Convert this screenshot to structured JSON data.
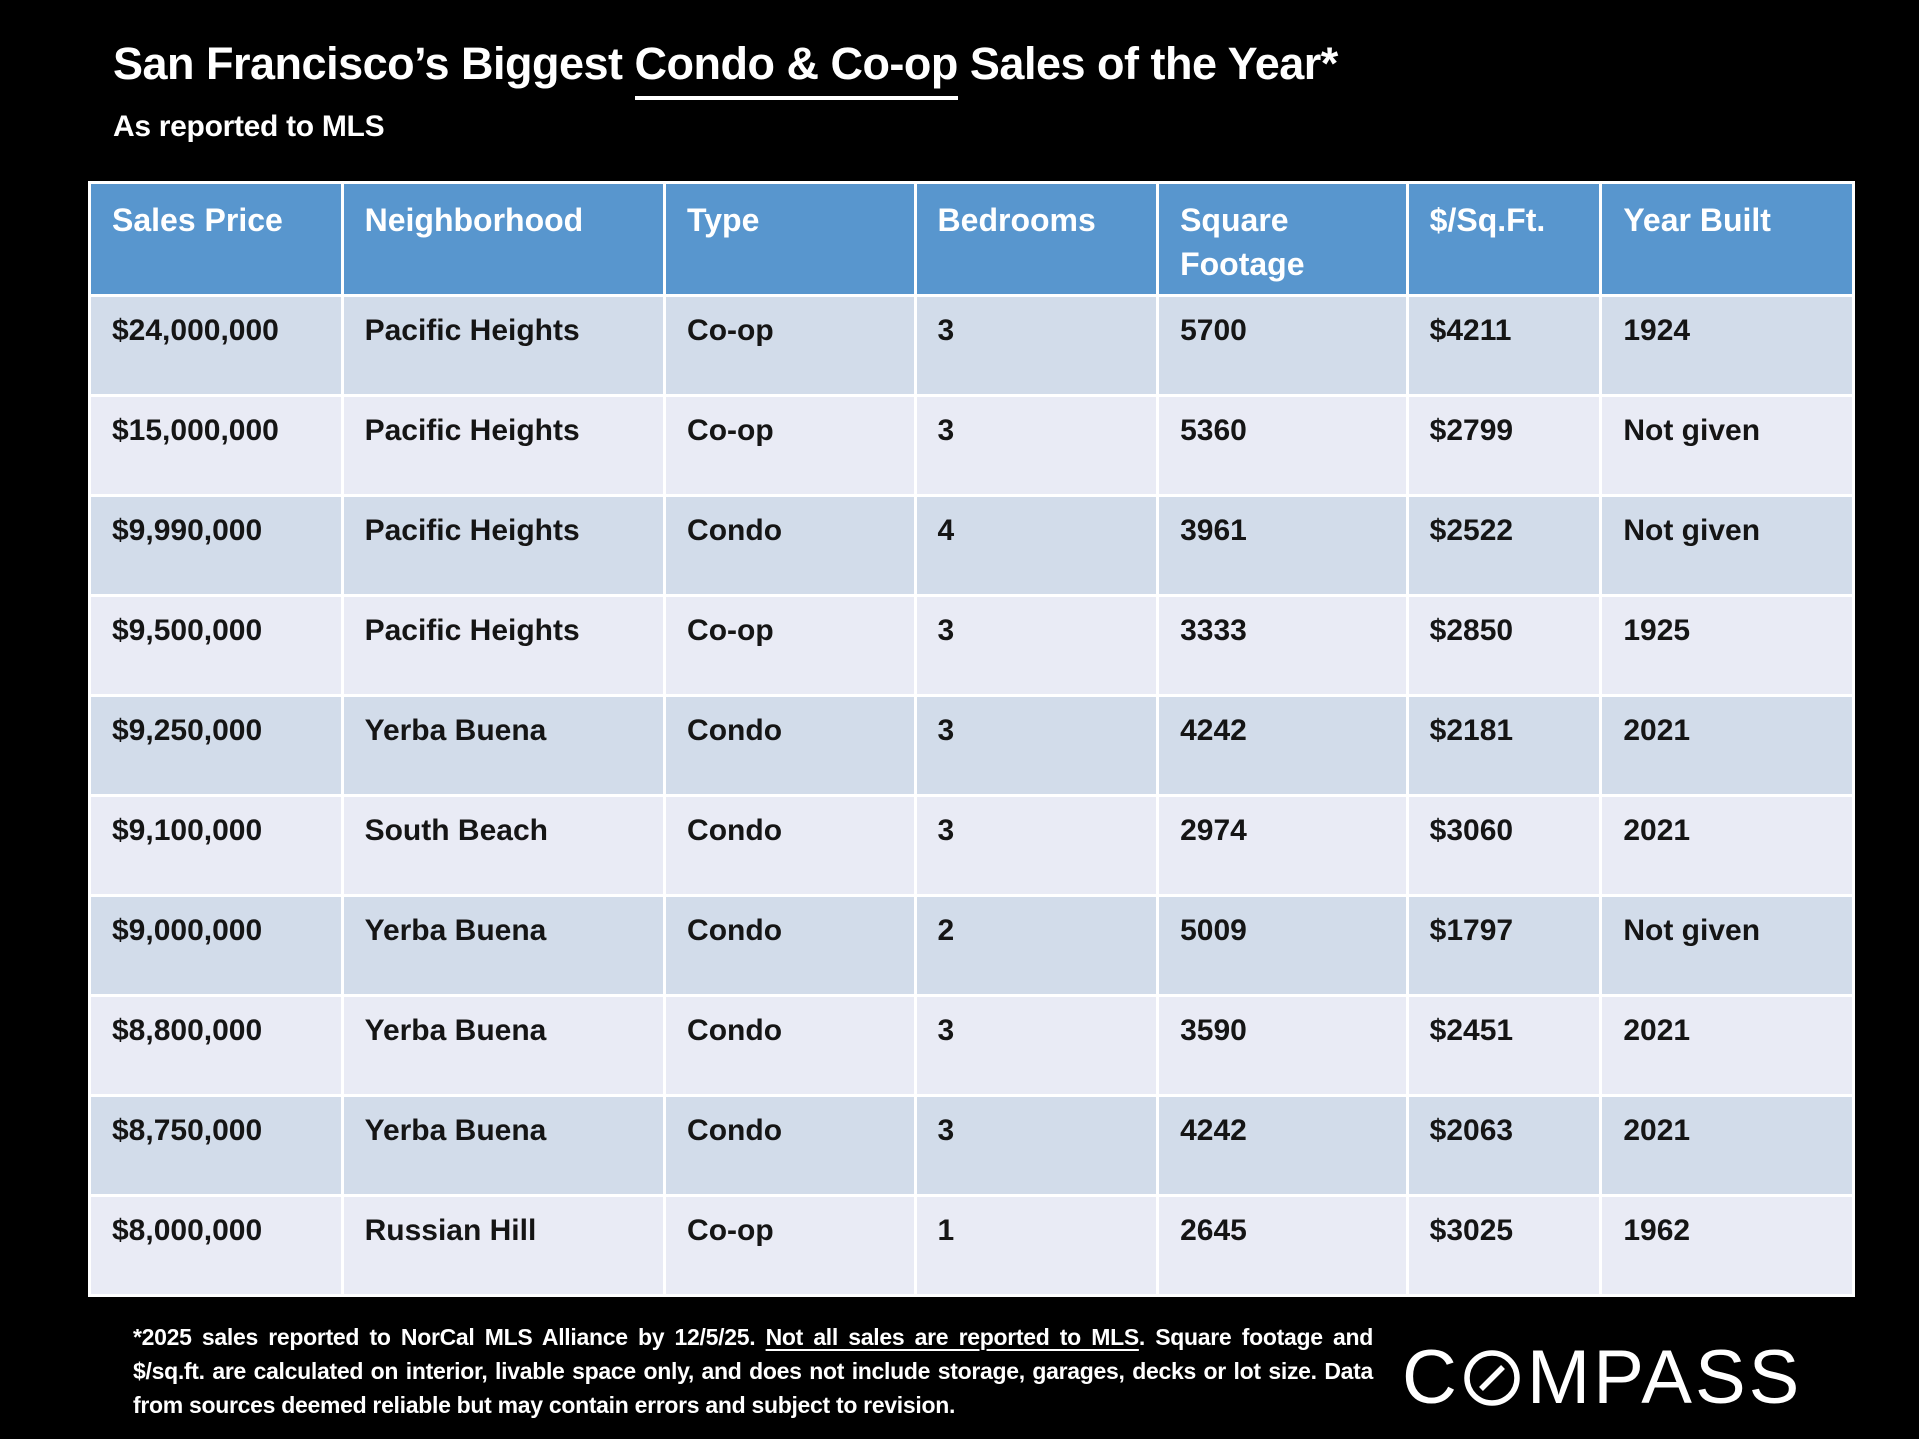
{
  "slide": {
    "title": {
      "prefix": "San Francisco’s Biggest ",
      "underlined": "Condo & Co-op",
      "suffix": " Sales of the Year*"
    },
    "subtitle": "As reported to MLS",
    "footnote": {
      "part1": "*2025 sales reported to NorCal MLS Alliance by 12/5/25. ",
      "underlined": "Not all sales are reported to MLS",
      "part2": ". Square footage and $/sq.ft. are calculated on interior, livable space only, and does not include storage, garages, decks or lot size. Data from sources deemed reliable but may contain errors and subject to revision."
    },
    "logo": {
      "text_left": "C",
      "text_right": "MPASS",
      "o_icon": "compass-slashed-o"
    }
  },
  "chart_data": {
    "type": "table",
    "title": "San Francisco’s Biggest Condo & Co-op Sales of the Year*",
    "subtitle": "As reported to MLS",
    "columns": [
      "Sales Price",
      "Neighborhood",
      "Type",
      "Bedrooms",
      "Square Footage",
      "$/Sq.Ft.",
      "Year Built"
    ],
    "rows": [
      [
        "$24,000,000",
        "Pacific Heights",
        "Co-op",
        "3",
        "5700",
        "$4211",
        "1924"
      ],
      [
        "$15,000,000",
        "Pacific Heights",
        "Co-op",
        "3",
        "5360",
        "$2799",
        "Not given"
      ],
      [
        "$9,990,000",
        "Pacific Heights",
        "Condo",
        "4",
        "3961",
        "$2522",
        "Not given"
      ],
      [
        "$9,500,000",
        "Pacific Heights",
        "Co-op",
        "3",
        "3333",
        "$2850",
        "1925"
      ],
      [
        "$9,250,000",
        "Yerba Buena",
        "Condo",
        "3",
        "4242",
        "$2181",
        "2021"
      ],
      [
        "$9,100,000",
        "South Beach",
        "Condo",
        "3",
        "2974",
        "$3060",
        "2021"
      ],
      [
        "$9,000,000",
        "Yerba Buena",
        "Condo",
        "2",
        "5009",
        "$1797",
        "Not given"
      ],
      [
        "$8,800,000",
        "Yerba Buena",
        "Condo",
        "3",
        "3590",
        "$2451",
        "2021"
      ],
      [
        "$8,750,000",
        "Yerba Buena",
        "Condo",
        "3",
        "4242",
        "$2063",
        "2021"
      ],
      [
        "$8,000,000",
        "Russian Hill",
        "Co-op",
        "1",
        "2645",
        "$3025",
        "1962"
      ]
    ]
  },
  "colors": {
    "background": "#000000",
    "header_bg": "#5896CE",
    "row_odd": "#D2DCEA",
    "row_even": "#E9EBF5",
    "grid": "#FFFFFF",
    "header_text": "#FFFFFF",
    "cell_text": "#151515",
    "title_text": "#FFFFFF"
  }
}
